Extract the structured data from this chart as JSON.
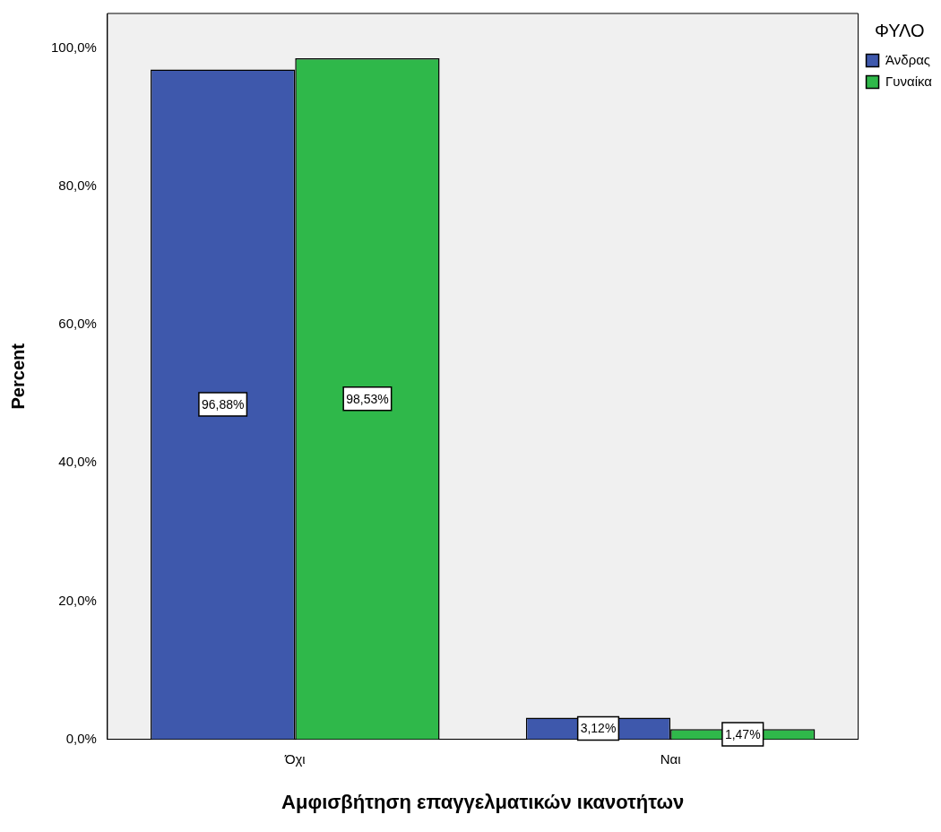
{
  "chart_data": {
    "type": "bar",
    "xlabel": "Αμφισβήτηση επαγγελματικών ικανοτήτων",
    "ylabel": "Percent",
    "legend_title": "ΦΥΛΟ",
    "legend": "top right",
    "categories": [
      "Όχι",
      "Ναι"
    ],
    "series": [
      {
        "name": "Άνδρας",
        "color": "#3e58ac",
        "values": [
          96.88,
          3.12
        ],
        "value_labels": [
          "96,88%",
          "3,12%"
        ]
      },
      {
        "name": "Γυναίκα",
        "color": "#2fb84a",
        "values": [
          98.53,
          1.47
        ],
        "value_labels": [
          "98,53%",
          "1,47%"
        ]
      }
    ],
    "ylim": [
      0,
      105
    ],
    "yticks": [
      {
        "value": 0,
        "label": "0,0%"
      },
      {
        "value": 20,
        "label": "20,0%"
      },
      {
        "value": 40,
        "label": "40,0%"
      },
      {
        "value": 60,
        "label": "60,0%"
      },
      {
        "value": 80,
        "label": "80,0%"
      },
      {
        "value": 100,
        "label": "100,0%"
      }
    ],
    "grid": false
  }
}
